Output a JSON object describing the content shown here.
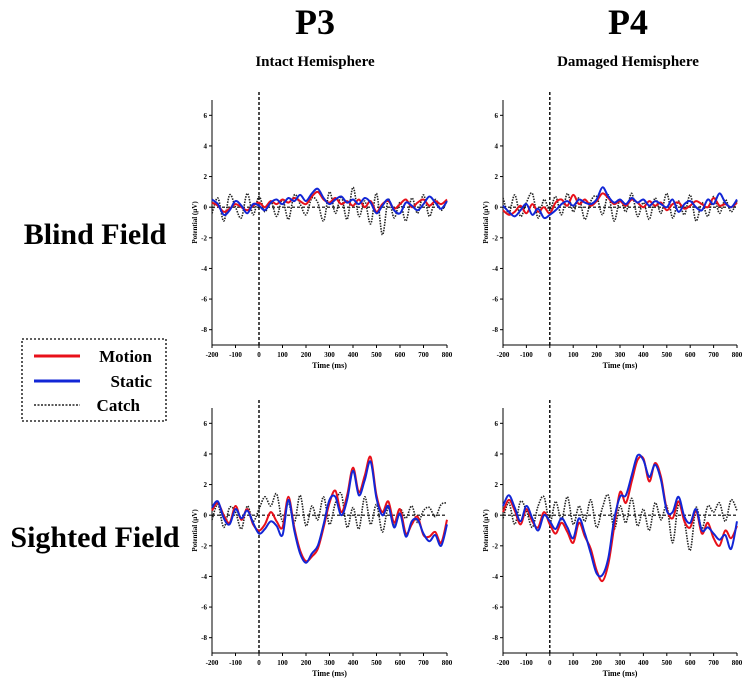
{
  "columns": [
    {
      "heading": "P3",
      "subheading": "Intact Hemisphere"
    },
    {
      "heading": "P4",
      "subheading": "Damaged Hemisphere"
    }
  ],
  "rows": [
    {
      "label": "Blind Field"
    },
    {
      "label": "Sighted Field"
    }
  ],
  "legend": {
    "items": [
      {
        "label": "Motion",
        "color": "#e8101a",
        "style": "solid"
      },
      {
        "label": "Static",
        "color": "#1226d6",
        "style": "solid"
      },
      {
        "label": "Catch",
        "color": "#222222",
        "style": "dotted"
      }
    ]
  },
  "chart_data": [
    {
      "type": "line",
      "id": "p3-blind",
      "xlabel": "Time (ms)",
      "ylabel": "Potential (µV)",
      "xlim": [
        -200,
        800
      ],
      "ylim": [
        -9,
        7
      ],
      "xticks": [
        -200,
        -100,
        0,
        100,
        200,
        300,
        400,
        500,
        600,
        700,
        800
      ],
      "yticks": [
        6,
        4,
        2,
        0,
        -2,
        -4,
        -6,
        -8
      ],
      "onset_ms": 0,
      "x": [
        -200,
        -175,
        -150,
        -125,
        -100,
        -75,
        -50,
        -25,
        0,
        25,
        50,
        75,
        100,
        125,
        150,
        175,
        200,
        225,
        250,
        275,
        300,
        325,
        350,
        375,
        400,
        425,
        450,
        475,
        500,
        525,
        550,
        575,
        600,
        625,
        650,
        675,
        700,
        725,
        750,
        775,
        800
      ],
      "series": [
        {
          "name": "Motion",
          "values": [
            0.3,
            0.1,
            -0.3,
            -0.1,
            0.2,
            0.0,
            -0.2,
            0.1,
            0.3,
            0.0,
            0.4,
            0.2,
            0.5,
            0.3,
            0.6,
            0.4,
            0.2,
            0.7,
            1.0,
            0.5,
            0.3,
            0.6,
            0.2,
            0.4,
            0.1,
            0.5,
            0.0,
            0.4,
            -0.3,
            0.2,
            0.4,
            -0.1,
            0.2,
            0.5,
            0.0,
            0.3,
            0.5,
            0.1,
            0.4,
            0.2,
            0.5
          ]
        },
        {
          "name": "Static",
          "values": [
            0.5,
            0.2,
            -0.5,
            -0.2,
            0.4,
            0.1,
            -0.4,
            0.2,
            0.1,
            -0.2,
            0.3,
            0.5,
            0.2,
            0.6,
            0.4,
            0.8,
            0.4,
            0.9,
            1.2,
            0.6,
            0.2,
            0.5,
            0.7,
            0.3,
            0.5,
            0.2,
            0.6,
            0.3,
            -0.4,
            0.1,
            0.5,
            -0.2,
            -0.4,
            0.3,
            0.1,
            -0.2,
            0.2,
            0.7,
            0.3,
            -0.1,
            0.4
          ]
        },
        {
          "name": "Catch",
          "values": [
            -0.4,
            0.6,
            -0.9,
            0.8,
            0.0,
            -0.7,
            0.9,
            -0.5,
            0.7,
            -0.3,
            0.4,
            -0.6,
            0.5,
            -0.8,
            0.8,
            0.2,
            -0.5,
            0.6,
            0.3,
            -0.9,
            1.0,
            -0.4,
            0.7,
            -0.8,
            1.3,
            -0.6,
            0.4,
            -1.1,
            0.9,
            -1.8,
            0.5,
            -0.7,
            0.3,
            -0.9,
            0.6,
            -0.4,
            0.8,
            -0.6,
            0.5,
            -0.2,
            0.4
          ]
        }
      ]
    },
    {
      "type": "line",
      "id": "p4-blind",
      "xlabel": "Time (ms)",
      "ylabel": "Potential (µV)",
      "xlim": [
        -200,
        800
      ],
      "ylim": [
        -9,
        7
      ],
      "xticks": [
        -200,
        -100,
        0,
        100,
        200,
        300,
        400,
        500,
        600,
        700,
        800
      ],
      "yticks": [
        6,
        4,
        2,
        0,
        -2,
        -4,
        -6,
        -8
      ],
      "onset_ms": 0,
      "x": [
        -200,
        -175,
        -150,
        -125,
        -100,
        -75,
        -50,
        -25,
        0,
        25,
        50,
        75,
        100,
        125,
        150,
        175,
        200,
        225,
        250,
        275,
        300,
        325,
        350,
        375,
        400,
        425,
        450,
        475,
        500,
        525,
        550,
        575,
        600,
        625,
        650,
        675,
        700,
        725,
        750,
        775,
        800
      ],
      "series": [
        {
          "name": "Motion",
          "values": [
            -0.2,
            -0.5,
            -0.3,
            0.1,
            -0.4,
            0.2,
            -0.3,
            0.0,
            -0.4,
            0.3,
            0.5,
            0.1,
            0.8,
            0.2,
            0.5,
            0.1,
            0.4,
            0.9,
            0.6,
            0.2,
            0.4,
            0.1,
            0.5,
            0.3,
            0.0,
            0.4,
            0.1,
            0.3,
            -0.2,
            0.2,
            0.3,
            -0.1,
            0.1,
            0.4,
            0.2,
            0.0,
            0.6,
            0.1,
            0.2,
            0.0,
            0.3
          ]
        },
        {
          "name": "Static",
          "values": [
            0.1,
            -0.3,
            -0.6,
            -0.2,
            0.2,
            -0.5,
            -0.1,
            -0.7,
            -0.5,
            -0.2,
            0.2,
            0.4,
            0.1,
            0.5,
            0.3,
            0.2,
            0.5,
            1.3,
            0.7,
            0.3,
            0.5,
            0.2,
            0.6,
            0.3,
            0.5,
            0.1,
            0.4,
            0.2,
            0.0,
            0.5,
            -0.3,
            0.2,
            0.4,
            0.0,
            -0.2,
            0.5,
            0.2,
            0.9,
            0.3,
            0.0,
            0.5
          ]
        },
        {
          "name": "Catch",
          "values": [
            0.6,
            -0.4,
            0.8,
            -0.6,
            0.3,
            0.9,
            -0.7,
            0.5,
            -0.2,
            0.7,
            -0.5,
            0.9,
            -0.3,
            0.6,
            -0.8,
            0.4,
            0.7,
            -0.5,
            0.8,
            -0.9,
            0.5,
            -0.3,
            0.9,
            -0.6,
            0.3,
            -0.8,
            0.6,
            -0.4,
            0.9,
            -0.7,
            0.4,
            -0.5,
            0.8,
            -0.9,
            0.3,
            -0.6,
            0.7,
            -0.4,
            0.5,
            -0.3,
            0.4
          ]
        }
      ]
    },
    {
      "type": "line",
      "id": "p3-sighted",
      "xlabel": "Time (ms)",
      "ylabel": "Potential (µV)",
      "xlim": [
        -200,
        800
      ],
      "ylim": [
        -9,
        7
      ],
      "xticks": [
        -200,
        -100,
        0,
        100,
        200,
        300,
        400,
        500,
        600,
        700,
        800
      ],
      "yticks": [
        6,
        4,
        2,
        0,
        -2,
        -4,
        -6,
        -8
      ],
      "onset_ms": 0,
      "x": [
        -200,
        -175,
        -150,
        -125,
        -100,
        -75,
        -50,
        -25,
        0,
        25,
        50,
        75,
        100,
        125,
        150,
        175,
        200,
        225,
        250,
        275,
        300,
        325,
        350,
        375,
        400,
        425,
        450,
        475,
        500,
        525,
        550,
        575,
        600,
        625,
        650,
        675,
        700,
        725,
        750,
        775,
        800
      ],
      "series": [
        {
          "name": "Motion",
          "values": [
            0.3,
            0.8,
            0.0,
            -0.5,
            0.6,
            -0.3,
            0.4,
            -0.6,
            -1.0,
            -0.6,
            0.2,
            -0.4,
            -0.8,
            1.2,
            -0.8,
            -2.3,
            -3.0,
            -2.7,
            -2.2,
            -0.8,
            0.8,
            1.6,
            0.2,
            1.3,
            3.1,
            1.5,
            2.6,
            3.8,
            1.3,
            0.2,
            0.9,
            -0.5,
            0.4,
            -1.2,
            -0.6,
            -0.1,
            -1.3,
            -1.4,
            -1.1,
            -1.8,
            -0.3
          ]
        },
        {
          "name": "Static",
          "values": [
            0.5,
            0.9,
            -0.2,
            -0.6,
            0.4,
            -0.2,
            0.3,
            -0.5,
            -1.2,
            -0.9,
            -0.4,
            -0.7,
            -1.3,
            1.0,
            -1.0,
            -2.5,
            -3.1,
            -2.5,
            -2.0,
            -0.6,
            1.0,
            1.2,
            0.0,
            1.0,
            2.9,
            1.3,
            2.3,
            3.5,
            1.1,
            0.0,
            0.6,
            -0.8,
            0.1,
            -1.4,
            -0.4,
            -0.3,
            -1.2,
            -1.7,
            -1.3,
            -2.0,
            -0.6
          ]
        },
        {
          "name": "Catch",
          "values": [
            -0.3,
            0.7,
            -0.8,
            0.5,
            0.2,
            -0.9,
            0.6,
            -0.4,
            0.4,
            1.2,
            0.6,
            1.4,
            -0.4,
            0.8,
            -0.5,
            1.3,
            -0.7,
            0.6,
            -0.3,
            1.2,
            -0.6,
            0.8,
            1.4,
            -0.8,
            0.5,
            -0.9,
            1.2,
            -0.6,
            0.7,
            -1.1,
            0.5,
            -0.7,
            0.4,
            -0.2,
            0.6,
            -0.5,
            0.3,
            0.5,
            -0.1,
            0.7,
            0.8
          ]
        }
      ]
    },
    {
      "type": "line",
      "id": "p4-sighted",
      "xlabel": "Time (ms)",
      "ylabel": "Potential (µV)",
      "xlim": [
        -200,
        800
      ],
      "ylim": [
        -9,
        7
      ],
      "xticks": [
        -200,
        -100,
        0,
        100,
        200,
        300,
        400,
        500,
        600,
        700,
        800
      ],
      "yticks": [
        6,
        4,
        2,
        0,
        -2,
        -4,
        -6,
        -8
      ],
      "onset_ms": 0,
      "x": [
        -200,
        -175,
        -150,
        -125,
        -100,
        -75,
        -50,
        -25,
        0,
        25,
        50,
        75,
        100,
        125,
        150,
        175,
        200,
        225,
        250,
        275,
        300,
        325,
        350,
        375,
        400,
        425,
        450,
        475,
        500,
        525,
        550,
        575,
        600,
        625,
        650,
        675,
        700,
        725,
        750,
        775,
        800
      ],
      "series": [
        {
          "name": "Motion",
          "values": [
            0.2,
            1.0,
            0.3,
            -0.6,
            0.4,
            -0.4,
            -0.8,
            0.2,
            -0.6,
            -1.2,
            -0.5,
            -1.1,
            -1.8,
            -0.5,
            -1.4,
            -2.2,
            -3.6,
            -4.3,
            -3.2,
            -0.8,
            1.5,
            0.8,
            2.2,
            3.6,
            3.7,
            2.2,
            3.4,
            2.5,
            0.4,
            -0.2,
            0.9,
            -0.4,
            -0.8,
            0.3,
            -1.2,
            -0.5,
            -1.5,
            -2.0,
            -1.0,
            -1.5,
            -0.7
          ]
        },
        {
          "name": "Static",
          "values": [
            0.6,
            1.3,
            0.5,
            -0.4,
            0.6,
            -0.2,
            -1.0,
            0.0,
            -0.4,
            -0.9,
            -0.2,
            -0.8,
            -1.5,
            -0.2,
            -1.2,
            -2.5,
            -3.8,
            -3.9,
            -2.8,
            -0.3,
            1.2,
            1.3,
            2.6,
            3.9,
            3.6,
            2.5,
            3.3,
            2.3,
            0.3,
            0.2,
            1.2,
            -0.1,
            -0.5,
            0.4,
            -1.0,
            -0.8,
            -1.2,
            -1.6,
            -1.3,
            -2.2,
            -0.4
          ]
        },
        {
          "name": "Catch",
          "values": [
            -0.2,
            0.8,
            -0.6,
            0.9,
            0.3,
            -0.8,
            0.6,
            1.2,
            -0.5,
            0.9,
            -0.3,
            1.2,
            -0.6,
            0.6,
            -0.4,
            1.0,
            -0.8,
            0.5,
            1.3,
            -0.9,
            0.6,
            -0.5,
            1.1,
            -0.7,
            0.4,
            -1.0,
            0.8,
            -0.3,
            0.6,
            -1.8,
            0.7,
            -0.4,
            -2.3,
            0.5,
            -0.9,
            0.6,
            0.2,
            0.8,
            -0.4,
            1.0,
            0.3
          ]
        }
      ]
    }
  ]
}
